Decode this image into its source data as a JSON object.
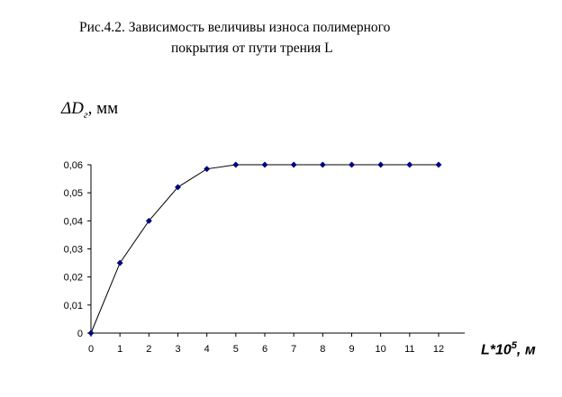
{
  "caption": {
    "line1": "Рис.4.2.    Зависимость величивы износа полимерного",
    "line2": "покрытия от пути трения  L"
  },
  "chart_data": {
    "type": "line",
    "ylabel_symbol": "ΔD",
    "ylabel_subscript": "г",
    "ylabel_unit": ", мм",
    "xlabel_main": "L*10",
    "xlabel_exponent": "5",
    "xlabel_unit": ", м",
    "x": [
      0,
      1,
      2,
      3,
      4,
      5,
      6,
      7,
      8,
      9,
      10,
      11,
      12
    ],
    "series": [
      {
        "values": [
          0,
          0.025,
          0.04,
          0.052,
          0.0585,
          0.06,
          0.06,
          0.06,
          0.06,
          0.06,
          0.06,
          0.06,
          0.06
        ]
      }
    ],
    "xlim": [
      0,
      12
    ],
    "ylim": [
      0,
      0.06
    ],
    "xticks": [
      "0",
      "1",
      "2",
      "3",
      "4",
      "5",
      "6",
      "7",
      "8",
      "9",
      "10",
      "11",
      "12"
    ],
    "yticks": [
      "0",
      "0,01",
      "0,02",
      "0,03",
      "0,04",
      "0,05",
      "0,06"
    ],
    "grid": false,
    "line_color": "#000000",
    "marker_color": "#000080"
  }
}
